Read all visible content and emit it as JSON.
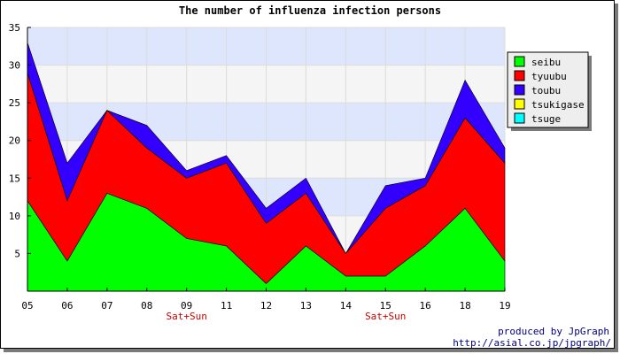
{
  "chart_data": {
    "type": "area",
    "stacked": true,
    "title": "The number of influenza infection persons",
    "categories": [
      "05",
      "06",
      "07",
      "08",
      "09",
      "11",
      "12",
      "13",
      "14",
      "15",
      "16",
      "18",
      "19"
    ],
    "ylim": [
      0,
      35
    ],
    "yticks": [
      "5",
      "10",
      "15",
      "20",
      "25",
      "30",
      "35"
    ],
    "series": [
      {
        "name": "seibu",
        "color": "#00ff00",
        "values": [
          12,
          4,
          13,
          11,
          7,
          6,
          1,
          6,
          2,
          2,
          6,
          11,
          4
        ]
      },
      {
        "name": "tyuubu",
        "color": "#ff0000",
        "values": [
          17,
          8,
          11,
          8,
          8,
          11,
          8,
          7,
          3,
          9,
          8,
          12,
          13
        ]
      },
      {
        "name": "toubu",
        "color": "#3300ff",
        "values": [
          4,
          5,
          0,
          3,
          1,
          1,
          2,
          2,
          0,
          3,
          1,
          5,
          2
        ]
      },
      {
        "name": "tsukigase",
        "color": "#ffff00",
        "values": [
          0,
          0,
          0,
          0,
          0,
          0,
          0,
          0,
          0,
          0,
          0,
          0,
          0
        ]
      },
      {
        "name": "tsuge",
        "color": "#00ffff",
        "values": [
          0,
          0,
          0,
          0,
          0,
          0,
          0,
          0,
          0,
          0,
          0,
          0,
          0
        ]
      }
    ],
    "annotations": [
      {
        "text": "Sat+Sun",
        "category": "09"
      },
      {
        "text": "Sat+Sun",
        "category": "15"
      }
    ],
    "band_colors": [
      "#f5f5f5",
      "#dde6fc"
    ],
    "legend_position": "right",
    "grid": true
  },
  "credits": {
    "line1": "produced by JpGraph",
    "line2": "http://asial.co.jp/jpgraph/"
  }
}
